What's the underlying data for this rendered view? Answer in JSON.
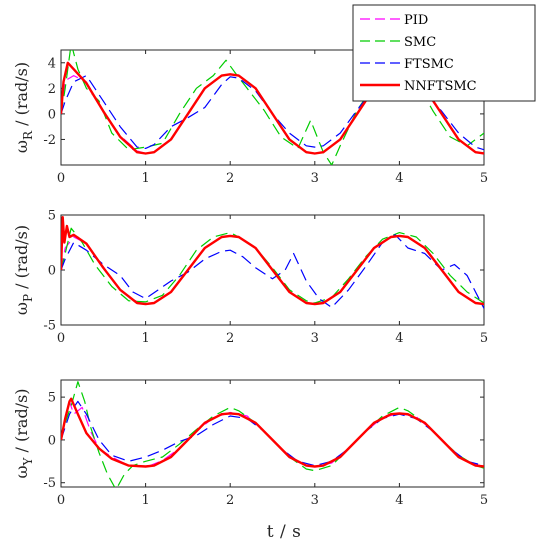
{
  "figure": {
    "xlabel": "t / s",
    "colors": {
      "PID": "#ff00ff",
      "SMC": "#00cc00",
      "FTSMC": "#0000ff",
      "NNFTSMC": "#ff0000",
      "axes": "#262626"
    }
  },
  "chart_data": [
    {
      "type": "line",
      "title": "",
      "xlabel": "",
      "ylabel_symbol": "ω",
      "ylabel_subscript": "R",
      "ylabel_unit": " / (rad/s)",
      "xlim": [
        0,
        5
      ],
      "ylim": [
        -4,
        5
      ],
      "xticks": [
        0,
        1,
        2,
        3,
        4,
        5
      ],
      "yticks": [
        -2,
        0,
        2,
        4
      ],
      "grid": false,
      "legend": {
        "placement": "top-right",
        "entries": [
          "PID",
          "SMC",
          "FTSMC",
          "NNFTSMC"
        ]
      },
      "series": [
        {
          "name": "PID",
          "x": [
            0,
            0.05,
            0.15,
            0.3,
            0.5,
            0.7,
            0.9,
            1.0,
            1.1,
            1.3,
            1.5,
            1.7,
            1.9,
            2.0,
            2.1,
            2.3,
            2.5,
            2.7,
            2.9,
            3.0,
            3.1,
            3.3,
            3.5,
            3.7,
            3.9,
            4.0,
            4.1,
            4.3,
            4.5,
            4.7,
            4.9,
            5.0
          ],
          "y": [
            0,
            2.6,
            3.0,
            2.5,
            0.2,
            -1.7,
            -2.9,
            -3.1,
            -3.0,
            -2.0,
            0.0,
            2.0,
            3.0,
            3.1,
            3.0,
            2.0,
            0.0,
            -2.0,
            -3.0,
            -3.1,
            -3.0,
            -2.0,
            0.0,
            2.0,
            3.0,
            3.1,
            3.0,
            2.0,
            0.0,
            -2.0,
            -3.0,
            -3.1
          ]
        },
        {
          "name": "SMC",
          "x": [
            0,
            0.05,
            0.12,
            0.2,
            0.3,
            0.45,
            0.6,
            0.8,
            1.0,
            1.2,
            1.4,
            1.6,
            1.8,
            1.95,
            2.05,
            2.2,
            2.4,
            2.6,
            2.8,
            2.95,
            3.1,
            3.2,
            3.3,
            3.5,
            3.7,
            3.9,
            4.05,
            4.2,
            4.4,
            4.6,
            4.8,
            5.0
          ],
          "y": [
            0,
            2.0,
            5.5,
            3.5,
            2.0,
            1.0,
            -1.5,
            -2.8,
            -2.6,
            -2.3,
            0.0,
            2.0,
            3.0,
            4.2,
            3.3,
            2.0,
            0.3,
            -1.8,
            -2.7,
            -0.5,
            -3.0,
            -4.0,
            -2.5,
            0.3,
            2.2,
            3.3,
            3.6,
            2.5,
            0.2,
            -1.8,
            -2.5,
            -1.5
          ]
        },
        {
          "name": "FTSMC",
          "x": [
            0,
            0.05,
            0.15,
            0.3,
            0.5,
            0.7,
            0.9,
            1.0,
            1.1,
            1.3,
            1.5,
            1.7,
            1.9,
            2.0,
            2.1,
            2.3,
            2.5,
            2.7,
            2.9,
            3.0,
            3.1,
            3.3,
            3.5,
            3.7,
            3.9,
            4.0,
            4.1,
            4.3,
            4.5,
            4.7,
            4.9,
            5.0
          ],
          "y": [
            0,
            1.0,
            2.5,
            3.0,
            1.0,
            -1.0,
            -2.6,
            -2.7,
            -2.4,
            -1.0,
            -0.3,
            0.5,
            2.3,
            2.9,
            2.8,
            1.8,
            0.0,
            -1.5,
            -2.5,
            -2.6,
            -2.5,
            -1.5,
            0.3,
            2.0,
            2.8,
            3.0,
            2.8,
            1.8,
            0.2,
            -1.5,
            -2.6,
            -2.8
          ]
        },
        {
          "name": "NNFTSMC",
          "x": [
            0,
            0.03,
            0.08,
            0.15,
            0.3,
            0.5,
            0.7,
            0.9,
            1.0,
            1.1,
            1.3,
            1.5,
            1.7,
            1.9,
            2.0,
            2.1,
            2.3,
            2.5,
            2.7,
            2.9,
            3.0,
            3.1,
            3.3,
            3.5,
            3.7,
            3.9,
            4.0,
            4.1,
            4.3,
            4.5,
            4.7,
            4.9,
            5.0
          ],
          "y": [
            0,
            2.5,
            4.0,
            3.5,
            2.4,
            0.2,
            -1.8,
            -3.0,
            -3.1,
            -3.0,
            -2.0,
            0.0,
            2.0,
            3.0,
            3.1,
            3.0,
            2.0,
            0.0,
            -2.0,
            -3.0,
            -3.1,
            -3.0,
            -2.0,
            0.0,
            2.0,
            3.0,
            3.1,
            3.0,
            2.0,
            0.0,
            -2.0,
            -3.0,
            -3.1
          ]
        }
      ]
    },
    {
      "type": "line",
      "title": "",
      "xlabel": "",
      "ylabel_symbol": "ω",
      "ylabel_subscript": "P",
      "ylabel_unit": " / (rad/s)",
      "xlim": [
        0,
        5
      ],
      "ylim": [
        -5,
        5
      ],
      "xticks": [
        0,
        1,
        2,
        3,
        4,
        5
      ],
      "yticks": [
        -5,
        0,
        5
      ],
      "grid": false,
      "series": [
        {
          "name": "PID",
          "x": [
            0,
            0.05,
            0.15,
            0.3,
            0.5,
            0.7,
            0.9,
            1.0,
            1.1,
            1.3,
            1.5,
            1.7,
            1.9,
            2.0,
            2.1,
            2.3,
            2.5,
            2.7,
            2.9,
            3.0,
            3.1,
            3.3,
            3.5,
            3.7,
            3.9,
            4.0,
            4.1,
            4.3,
            4.5,
            4.7,
            4.9,
            5.0
          ],
          "y": [
            0,
            2.0,
            3.0,
            2.4,
            0.3,
            -1.8,
            -2.9,
            -3.1,
            -3.0,
            -2.0,
            0.0,
            2.0,
            3.0,
            3.1,
            3.0,
            2.0,
            0.0,
            -2.0,
            -3.0,
            -3.1,
            -3.0,
            -2.0,
            0.0,
            2.0,
            3.0,
            3.1,
            3.0,
            2.0,
            0.0,
            -2.0,
            -3.0,
            -3.1
          ]
        },
        {
          "name": "SMC",
          "x": [
            0,
            0.05,
            0.12,
            0.25,
            0.4,
            0.6,
            0.8,
            1.0,
            1.2,
            1.4,
            1.6,
            1.8,
            2.0,
            2.1,
            2.3,
            2.5,
            2.7,
            2.9,
            3.0,
            3.2,
            3.4,
            3.6,
            3.8,
            4.0,
            4.2,
            4.4,
            4.6,
            4.8,
            5.0
          ],
          "y": [
            0,
            1.5,
            3.8,
            2.5,
            0.5,
            -1.5,
            -2.8,
            -2.9,
            -2.3,
            -0.5,
            1.8,
            3.0,
            3.4,
            3.0,
            2.0,
            0.2,
            -1.8,
            -2.8,
            -3.0,
            -2.5,
            -0.8,
            1.2,
            2.8,
            3.4,
            3.0,
            1.5,
            -0.5,
            -2.0,
            -3.0
          ]
        },
        {
          "name": "FTSMC",
          "x": [
            0,
            0.05,
            0.15,
            0.3,
            0.5,
            0.7,
            0.85,
            1.0,
            1.15,
            1.3,
            1.5,
            1.7,
            1.9,
            2.0,
            2.15,
            2.3,
            2.5,
            2.65,
            2.75,
            2.9,
            3.05,
            3.2,
            3.4,
            3.6,
            3.8,
            3.95,
            4.1,
            4.3,
            4.5,
            4.65,
            4.8,
            5.0
          ],
          "y": [
            0,
            1.0,
            2.5,
            1.8,
            0.5,
            -0.5,
            -2.0,
            -2.6,
            -1.8,
            -1.0,
            -0.2,
            1.0,
            1.7,
            1.8,
            1.2,
            0.2,
            -0.8,
            0.0,
            1.5,
            -1.0,
            -2.6,
            -3.4,
            -1.8,
            0.3,
            2.5,
            3.2,
            2.0,
            1.5,
            0.0,
            0.5,
            -0.5,
            -3.5
          ]
        },
        {
          "name": "NNFTSMC",
          "x": [
            0,
            0.02,
            0.04,
            0.07,
            0.1,
            0.15,
            0.3,
            0.5,
            0.7,
            0.9,
            1.0,
            1.1,
            1.3,
            1.5,
            1.7,
            1.9,
            2.0,
            2.1,
            2.3,
            2.5,
            2.7,
            2.9,
            3.0,
            3.1,
            3.3,
            3.5,
            3.7,
            3.9,
            4.0,
            4.1,
            4.3,
            4.5,
            4.7,
            4.9,
            5.0
          ],
          "y": [
            0,
            4.8,
            2.5,
            4.0,
            3.0,
            3.2,
            2.4,
            0.2,
            -1.8,
            -3.0,
            -3.1,
            -3.0,
            -2.0,
            0.0,
            2.0,
            3.0,
            3.1,
            3.0,
            2.0,
            0.0,
            -2.0,
            -3.0,
            -3.1,
            -3.0,
            -2.0,
            0.0,
            2.0,
            3.0,
            3.1,
            3.0,
            2.0,
            0.0,
            -2.0,
            -3.0,
            -3.1
          ]
        }
      ]
    },
    {
      "type": "line",
      "title": "",
      "xlabel": "",
      "ylabel_symbol": "ω",
      "ylabel_subscript": "Y",
      "ylabel_unit": " / (rad/s)",
      "xlim": [
        0,
        5
      ],
      "ylim": [
        -5.5,
        7
      ],
      "xticks": [
        0,
        1,
        2,
        3,
        4,
        5
      ],
      "yticks": [
        -5,
        0,
        5
      ],
      "grid": false,
      "series": [
        {
          "name": "PID",
          "x": [
            0,
            0.05,
            0.1,
            0.15,
            0.25,
            0.35,
            0.45,
            0.6,
            0.8,
            1.0,
            1.2,
            1.4,
            1.6,
            1.8,
            2.0,
            2.2,
            2.4,
            2.6,
            2.8,
            3.0,
            3.2,
            3.4,
            3.6,
            3.8,
            4.0,
            4.2,
            4.4,
            4.6,
            4.8,
            5.0
          ],
          "y": [
            0,
            2.0,
            4.5,
            3.0,
            3.8,
            1.0,
            -1.0,
            -2.0,
            -3.0,
            -3.2,
            -2.4,
            -1.0,
            1.0,
            2.6,
            3.2,
            2.8,
            1.0,
            -1.0,
            -2.6,
            -3.1,
            -2.7,
            -1.0,
            1.0,
            2.6,
            3.1,
            2.7,
            1.0,
            -1.0,
            -2.6,
            -3.1
          ]
        },
        {
          "name": "SMC",
          "x": [
            0,
            0.05,
            0.12,
            0.2,
            0.28,
            0.35,
            0.45,
            0.55,
            0.65,
            0.75,
            0.85,
            1.0,
            1.2,
            1.4,
            1.6,
            1.8,
            2.0,
            2.1,
            2.3,
            2.5,
            2.7,
            2.9,
            3.0,
            3.2,
            3.4,
            3.6,
            3.8,
            4.0,
            4.1,
            4.3,
            4.5,
            4.7,
            4.9,
            5.0
          ],
          "y": [
            0,
            2.0,
            4.0,
            6.8,
            4.5,
            1.5,
            -1.5,
            -4.0,
            -5.8,
            -4.0,
            -3.0,
            -2.5,
            -2.0,
            -0.5,
            1.2,
            2.8,
            3.8,
            3.4,
            2.0,
            0.0,
            -2.0,
            -3.4,
            -3.6,
            -3.0,
            -1.0,
            1.0,
            2.8,
            3.8,
            3.4,
            2.0,
            0.0,
            -1.8,
            -3.0,
            -3.3
          ]
        },
        {
          "name": "FTSMC",
          "x": [
            0,
            0.05,
            0.1,
            0.15,
            0.2,
            0.3,
            0.45,
            0.6,
            0.8,
            1.0,
            1.2,
            1.4,
            1.6,
            1.8,
            2.0,
            2.2,
            2.4,
            2.6,
            2.8,
            3.0,
            3.2,
            3.4,
            3.6,
            3.8,
            4.0,
            4.2,
            4.4,
            4.6,
            4.8,
            5.0
          ],
          "y": [
            0,
            1.5,
            3.0,
            3.8,
            4.5,
            3.0,
            0.0,
            -1.8,
            -2.5,
            -2.0,
            -1.2,
            -0.2,
            0.5,
            1.8,
            2.8,
            2.5,
            1.0,
            -1.0,
            -2.5,
            -3.0,
            -2.5,
            -1.0,
            1.0,
            2.5,
            3.0,
            2.5,
            1.0,
            -1.0,
            -2.5,
            -3.0
          ]
        },
        {
          "name": "NNFTSMC",
          "x": [
            0,
            0.05,
            0.1,
            0.12,
            0.2,
            0.3,
            0.45,
            0.6,
            0.8,
            1.0,
            1.1,
            1.3,
            1.5,
            1.7,
            1.9,
            2.0,
            2.1,
            2.3,
            2.5,
            2.7,
            2.9,
            3.0,
            3.1,
            3.3,
            3.5,
            3.7,
            3.9,
            4.0,
            4.1,
            4.3,
            4.5,
            4.7,
            4.9,
            5.0
          ],
          "y": [
            0,
            2.5,
            4.5,
            4.8,
            3.0,
            0.8,
            -1.0,
            -2.2,
            -3.0,
            -3.1,
            -3.0,
            -2.0,
            0.0,
            2.0,
            3.0,
            3.1,
            3.0,
            2.0,
            0.0,
            -2.0,
            -3.0,
            -3.1,
            -3.0,
            -2.0,
            0.0,
            2.0,
            3.0,
            3.1,
            3.0,
            2.0,
            0.0,
            -2.0,
            -3.0,
            -3.1
          ]
        }
      ]
    }
  ]
}
